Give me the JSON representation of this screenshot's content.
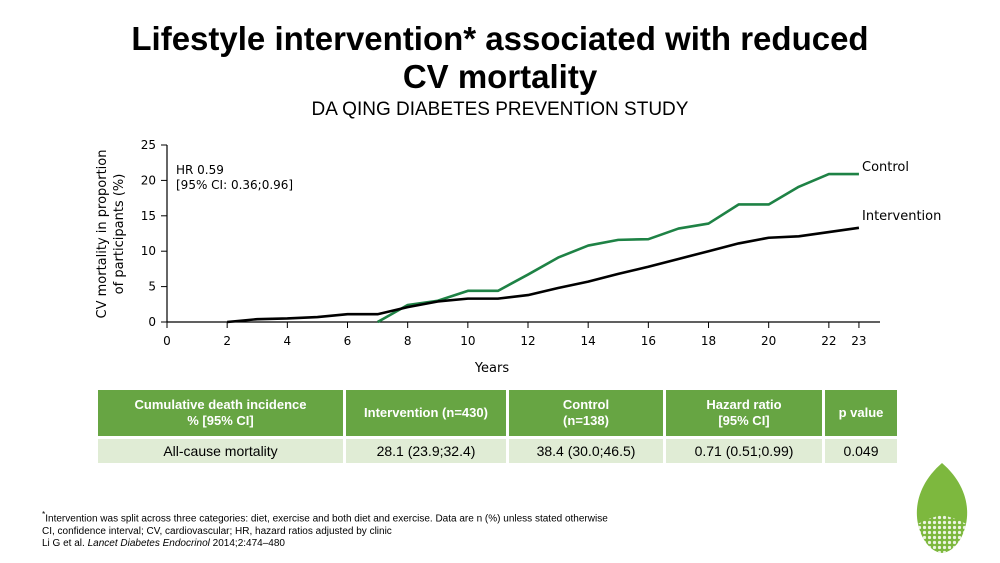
{
  "slide": {
    "title_line1": "Lifestyle intervention* associated with reduced",
    "title_line2": "CV mortality",
    "subtitle": "DA QING DIABETES PREVENTION STUDY"
  },
  "chart_data": {
    "type": "line",
    "xlabel": "Years",
    "ylabel_line1": "CV mortality in proportion",
    "ylabel_line2": "of participants (%)",
    "xlim": [
      0,
      23.7
    ],
    "ylim": [
      0,
      25
    ],
    "xticks": [
      0,
      2,
      4,
      6,
      8,
      10,
      12,
      14,
      16,
      18,
      20,
      22,
      23
    ],
    "yticks": [
      0,
      5,
      10,
      15,
      20,
      25
    ],
    "grid": false,
    "annotation_line1": "HR 0.59",
    "annotation_line2": "[95% CI: 0.36;0.96]",
    "series": [
      {
        "name": "Control",
        "color": "#1e8245",
        "x": [
          7,
          8,
          9,
          10,
          11,
          12,
          13,
          14,
          15,
          16,
          17,
          18,
          19,
          20,
          21,
          22,
          23
        ],
        "y": [
          0,
          2.4,
          3.0,
          4.4,
          4.4,
          6.7,
          9.1,
          10.8,
          11.6,
          11.7,
          13.2,
          13.9,
          16.6,
          16.6,
          19.1,
          20.9,
          20.9
        ]
      },
      {
        "name": "Intervention",
        "color": "#000000",
        "x": [
          2,
          3,
          4,
          5,
          6,
          7,
          8,
          9,
          10,
          11,
          12,
          13,
          14,
          15,
          16,
          17,
          18,
          19,
          20,
          21,
          22,
          23
        ],
        "y": [
          0,
          0.4,
          0.5,
          0.7,
          1.1,
          1.1,
          2.1,
          2.9,
          3.3,
          3.3,
          3.8,
          4.8,
          5.7,
          6.8,
          7.8,
          8.9,
          10.0,
          11.1,
          11.9,
          12.1,
          12.7,
          13.3
        ]
      }
    ]
  },
  "table": {
    "headers": [
      [
        "Cumulative death incidence",
        "% [95% CI]"
      ],
      [
        "Intervention (n=430)"
      ],
      [
        "Control",
        "(n=138)"
      ],
      [
        "Hazard ratio",
        "[95% CI]"
      ],
      [
        "p value"
      ]
    ],
    "rows": [
      [
        "All-cause mortality",
        "28.1 (23.9;32.4)",
        "38.4 (30.0;46.5)",
        "0.71 (0.51;0.99)",
        "0.049"
      ]
    ]
  },
  "footnotes": {
    "note_star": "*",
    "note": "Intervention was split across three categories: diet, exercise and both diet and exercise. Data are n (%) unless stated otherwise",
    "abbrev": "CI, confidence interval; CV, cardiovascular; HR, hazard ratios adjusted by clinic",
    "ref_authors": "Li G et al. ",
    "ref_journal": "Lancet Diabetes Endocrinol",
    "ref_rest": " 2014;2:474–480"
  },
  "colors": {
    "table_header": "#67a543",
    "table_row": "#e0ecd5",
    "logo_green": "#7db83e"
  }
}
